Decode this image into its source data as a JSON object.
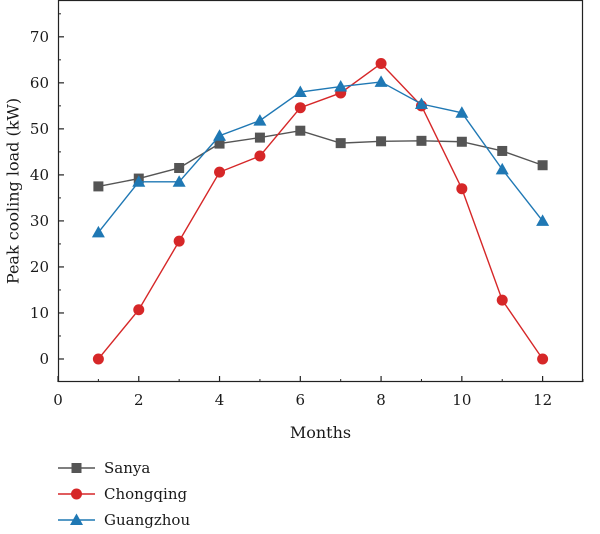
{
  "chart_data": {
    "type": "line",
    "title": "",
    "xlabel": "Months",
    "ylabel": "Peak cooling load (kW)",
    "xlim": [
      0,
      13
    ],
    "ylim": [
      -5,
      78
    ],
    "xticks": [
      0,
      2,
      4,
      6,
      8,
      10,
      12
    ],
    "yticks": [
      0,
      10,
      20,
      30,
      40,
      50,
      60,
      70
    ],
    "grid": false,
    "legend_position": "bottom-left",
    "x": [
      1,
      2,
      3,
      4,
      5,
      6,
      7,
      8,
      9,
      10,
      11,
      12
    ],
    "series": [
      {
        "name": "Sanya",
        "color": "#555555",
        "marker": "square",
        "values": [
          37.5,
          39.2,
          41.5,
          46.8,
          48.1,
          49.6,
          46.9,
          47.3,
          47.4,
          47.2,
          45.2,
          42.1
        ]
      },
      {
        "name": "Chongqing",
        "color": "#d62728",
        "marker": "circle",
        "values": [
          0.0,
          10.7,
          25.6,
          40.6,
          44.1,
          54.6,
          57.8,
          64.2,
          55.0,
          37.0,
          12.8,
          0.0
        ]
      },
      {
        "name": "Guangzhou",
        "color": "#1f78b4",
        "marker": "triangle",
        "values": [
          27.5,
          38.5,
          38.5,
          48.5,
          51.8,
          58.0,
          59.2,
          60.2,
          55.4,
          53.5,
          41.2,
          30.0
        ]
      }
    ]
  }
}
